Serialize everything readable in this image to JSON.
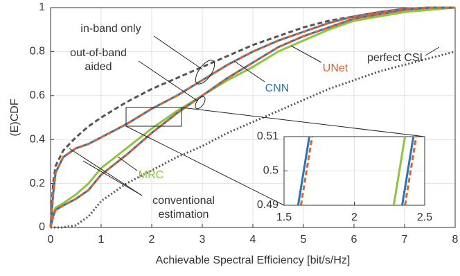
{
  "chart_data": [
    {
      "type": "line",
      "xlabel": "Achievable Spectral Efficiency [bit/s/Hz]",
      "ylabel": "(E)CDF",
      "x": [
        0,
        0.05,
        0.1,
        0.25,
        0.5,
        0.75,
        1,
        1.5,
        2,
        2.5,
        3,
        3.5,
        4,
        4.5,
        5,
        5.5,
        6,
        6.5,
        7,
        7.5,
        8
      ],
      "xlim": [
        0,
        8
      ],
      "xticks": [
        0,
        1,
        2,
        3,
        4,
        5,
        6,
        7,
        8
      ],
      "ylim": [
        0,
        1
      ],
      "yticks": [
        0,
        0.2,
        0.4,
        0.6,
        0.8,
        1
      ],
      "grid": true,
      "series": [
        {
          "color": "#555555",
          "dash": "dotted",
          "values": [
            0,
            0,
            0,
            0,
            0.01,
            0.05,
            0.12,
            0.2,
            0.26,
            0.32,
            0.37,
            0.43,
            0.48,
            0.53,
            0.58,
            0.63,
            0.67,
            0.71,
            0.74,
            0.77,
            0.8
          ]
        },
        {
          "color": "#555555",
          "dash": "dashed",
          "values": [
            0,
            0.2,
            0.28,
            0.35,
            0.41,
            0.46,
            0.5,
            0.57,
            0.63,
            0.68,
            0.73,
            0.78,
            0.83,
            0.87,
            0.91,
            0.94,
            0.96,
            0.98,
            0.99,
            1,
            1
          ]
        },
        {
          "color": "#8cc63f",
          "dash": "solid",
          "values": [
            0,
            0.06,
            0.09,
            0.11,
            0.15,
            0.2,
            0.27,
            0.36,
            0.45,
            0.53,
            0.6,
            0.67,
            0.73,
            0.8,
            0.85,
            0.9,
            0.94,
            0.96,
            0.98,
            0.99,
            1
          ]
        },
        {
          "color": "#1f77c4",
          "dash": "solid",
          "values": [
            0,
            0.05,
            0.08,
            0.1,
            0.13,
            0.17,
            0.24,
            0.33,
            0.43,
            0.52,
            0.6,
            0.68,
            0.75,
            0.82,
            0.87,
            0.91,
            0.95,
            0.97,
            0.99,
            1,
            1
          ]
        },
        {
          "color": "#e0622a",
          "dash": "dashed",
          "values": [
            0,
            0.05,
            0.08,
            0.1,
            0.13,
            0.17,
            0.24,
            0.33,
            0.43,
            0.52,
            0.6,
            0.68,
            0.75,
            0.82,
            0.87,
            0.91,
            0.95,
            0.97,
            0.99,
            1,
            1
          ]
        },
        {
          "color": "#1f77c4",
          "dash": "solid",
          "values": [
            0,
            0.15,
            0.25,
            0.32,
            0.36,
            0.38,
            0.41,
            0.47,
            0.54,
            0.6,
            0.67,
            0.74,
            0.8,
            0.85,
            0.89,
            0.93,
            0.96,
            0.98,
            0.995,
            1,
            1
          ]
        },
        {
          "color": "#e0622a",
          "dash": "dashed",
          "values": [
            0,
            0.15,
            0.25,
            0.32,
            0.36,
            0.38,
            0.41,
            0.47,
            0.54,
            0.6,
            0.67,
            0.74,
            0.8,
            0.85,
            0.89,
            0.93,
            0.96,
            0.98,
            0.995,
            1,
            1
          ]
        }
      ],
      "annotations": {
        "in_band": "in-band only",
        "out_of_band": [
          "out-of-band",
          "aided"
        ],
        "perfect": "perfect CSI",
        "unet": "UNet",
        "cnn": "CNN",
        "mrc": "MRC",
        "conventional": [
          "conventional",
          "estimation"
        ]
      }
    },
    {
      "type": "line",
      "xlim": [
        1.5,
        2.5
      ],
      "xticks": [
        1.5,
        2,
        2.5
      ],
      "ylim": [
        0.49,
        0.51
      ],
      "yticks": [
        0.49,
        0.5,
        0.51
      ],
      "grid": true,
      "series": [
        {
          "color": "#1f77c4",
          "dash": "solid",
          "x": [
            1.6,
            1.68
          ],
          "values": [
            0.49,
            0.51
          ]
        },
        {
          "color": "#e0622a",
          "dash": "dashed",
          "x": [
            1.62,
            1.7
          ],
          "values": [
            0.49,
            0.51
          ]
        },
        {
          "color": "#8cc63f",
          "dash": "solid",
          "x": [
            2.28,
            2.36
          ],
          "values": [
            0.49,
            0.51
          ]
        },
        {
          "color": "#1f77c4",
          "dash": "solid",
          "x": [
            2.34,
            2.42
          ],
          "values": [
            0.49,
            0.51
          ]
        },
        {
          "color": "#e0622a",
          "dash": "dashed",
          "x": [
            2.36,
            2.44
          ],
          "values": [
            0.49,
            0.51
          ]
        }
      ]
    }
  ]
}
